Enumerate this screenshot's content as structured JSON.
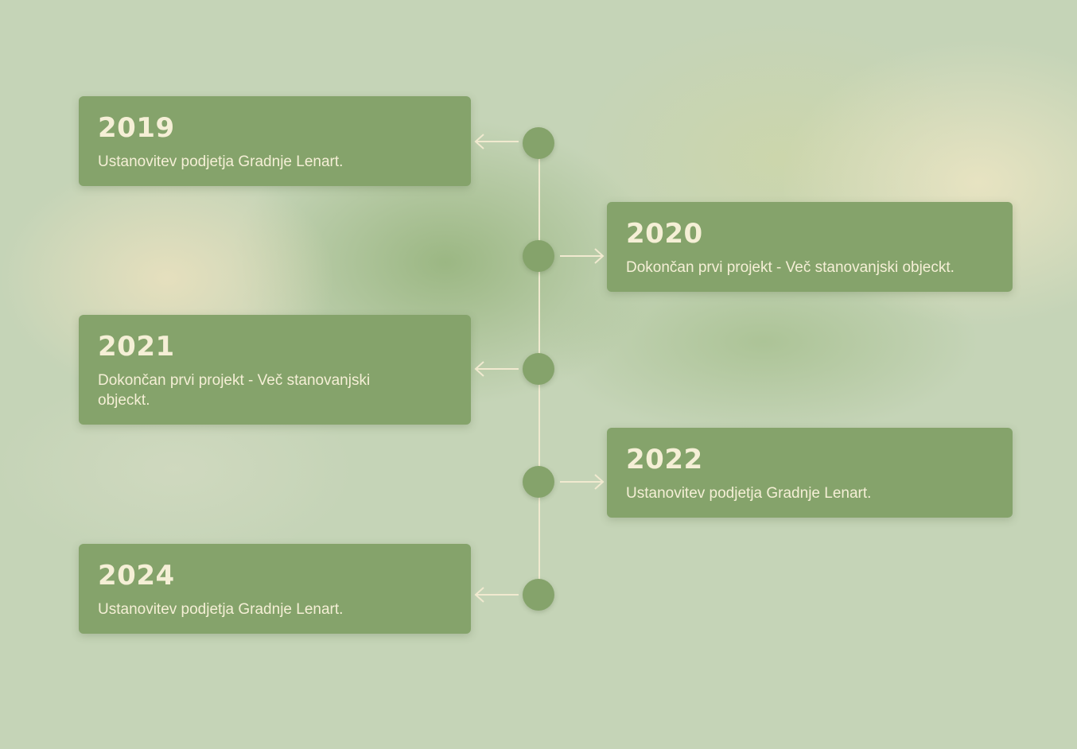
{
  "colors": {
    "card": "#85a36b",
    "text": "#f5efd6",
    "line": "#f1ead0",
    "background": "#c5d4b7"
  },
  "timeline": {
    "items": [
      {
        "year": "2019",
        "text": "Ustanovitev podjetja Gradnje Lenart.",
        "side": "left"
      },
      {
        "year": "2020",
        "text": "Dokončan prvi projekt - Več stanovanjski objeckt.",
        "side": "right"
      },
      {
        "year": "2021",
        "text": "Dokončan prvi projekt - Več stanovanjski objeckt.",
        "side": "left"
      },
      {
        "year": "2022",
        "text": "Ustanovitev podjetja Gradnje Lenart.",
        "side": "right"
      },
      {
        "year": "2024",
        "text": "Ustanovitev podjetja Gradnje Lenart.",
        "side": "left"
      }
    ]
  }
}
